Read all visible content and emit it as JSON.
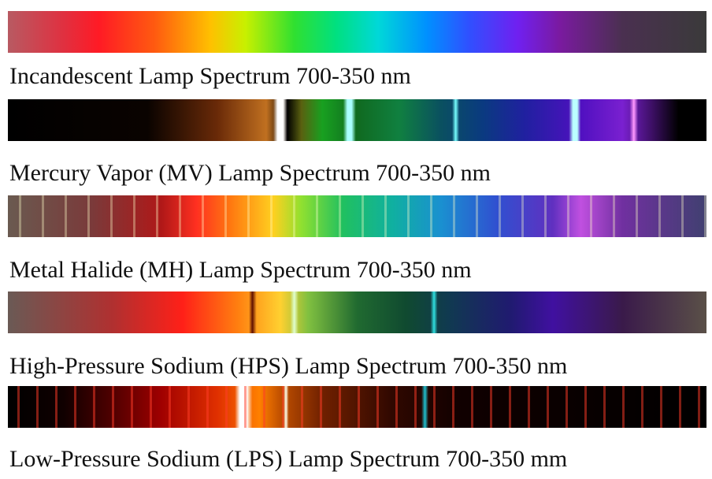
{
  "spectra": [
    {
      "caption": "Incandescent Lamp Spectrum 700-350 nm"
    },
    {
      "caption": "Mercury Vapor (MV) Lamp Spectrum 700-350 nm"
    },
    {
      "caption": "Metal Halide (MH) Lamp Spectrum 700-350 nm"
    },
    {
      "caption": "High-Pressure Sodium (HPS) Lamp Spectrum 700-350 nm"
    },
    {
      "caption": "Low-Pressure Sodium (LPS) Lamp Spectrum 700-350 mm"
    }
  ]
}
